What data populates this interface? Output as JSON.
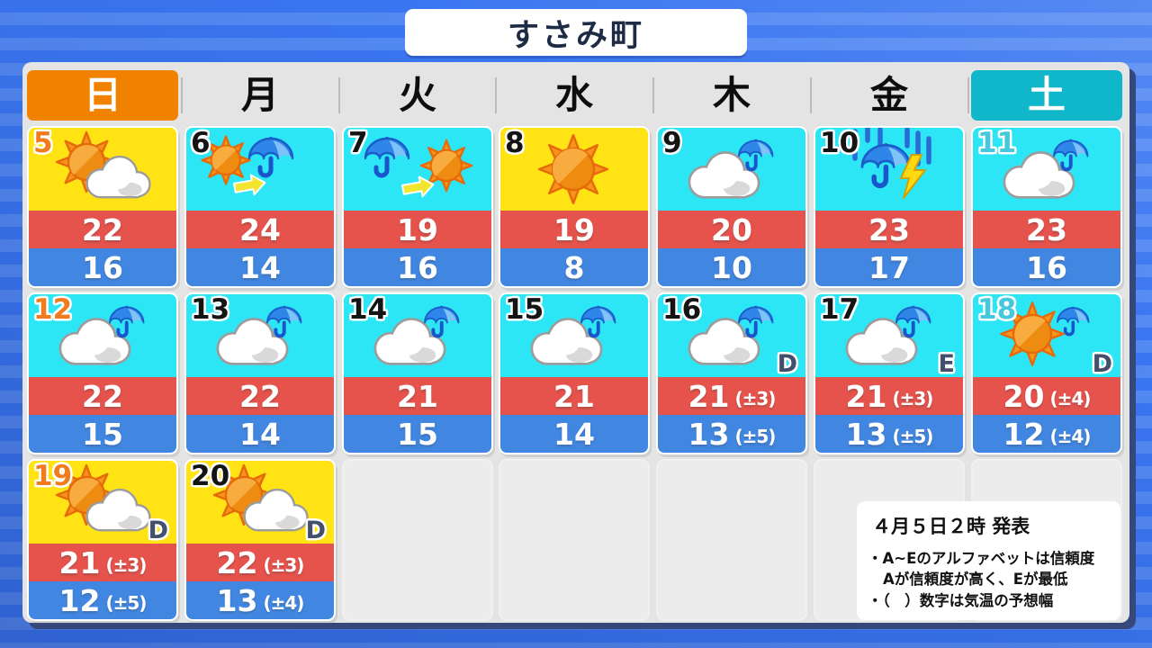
{
  "title": "すさみ町",
  "weekday_header": [
    "日",
    "月",
    "火",
    "水",
    "木",
    "金",
    "土"
  ],
  "legend": {
    "issued": "４月５日２時 発表",
    "bullet1": "・A~Eのアルファベットは信頼度",
    "bullet2": "Aが信頼度が高く、Eが最低",
    "bullet3": "・（　）数字は気温の予想幅"
  },
  "colors": {
    "sunday_header_bg": "#f08200",
    "saturday_header_bg": "#10b6c9",
    "sunny_cell_bg": "#ffe314",
    "cloudy_cell_bg": "#2ce6f6",
    "high_band_bg": "#e6534c",
    "low_band_bg": "#4187e2",
    "sunday_date": "#f07c1e",
    "saturday_date": "#46c8dc",
    "weekday_date": "#141414"
  },
  "days": [
    {
      "date": "5",
      "weekday": "sun",
      "sky": "sunny",
      "icon": "sun-cloud",
      "high": "22",
      "low": "16"
    },
    {
      "date": "6",
      "weekday": "mon",
      "sky": "cloudy",
      "icon": "sun-then-umbrella",
      "high": "24",
      "low": "14"
    },
    {
      "date": "7",
      "weekday": "tue",
      "sky": "cloudy",
      "icon": "umbrella-then-sun",
      "high": "19",
      "low": "16"
    },
    {
      "date": "8",
      "weekday": "wed",
      "sky": "sunny",
      "icon": "sun",
      "high": "19",
      "low": "8"
    },
    {
      "date": "9",
      "weekday": "thu",
      "sky": "cloudy",
      "icon": "cloud-umbrella",
      "high": "20",
      "low": "10"
    },
    {
      "date": "10",
      "weekday": "fri",
      "sky": "cloudy",
      "icon": "rain-thunder",
      "high": "23",
      "low": "17"
    },
    {
      "date": "11",
      "weekday": "sat",
      "sky": "cloudy",
      "icon": "cloud-umbrella",
      "high": "23",
      "low": "16"
    },
    {
      "date": "12",
      "weekday": "sun",
      "sky": "cloudy",
      "icon": "cloud-umbrella",
      "high": "22",
      "low": "15"
    },
    {
      "date": "13",
      "weekday": "mon",
      "sky": "cloudy",
      "icon": "cloud-umbrella",
      "high": "22",
      "low": "14"
    },
    {
      "date": "14",
      "weekday": "tue",
      "sky": "cloudy",
      "icon": "cloud-umbrella",
      "high": "21",
      "low": "15"
    },
    {
      "date": "15",
      "weekday": "wed",
      "sky": "cloudy",
      "icon": "cloud-umbrella",
      "high": "21",
      "low": "14"
    },
    {
      "date": "16",
      "weekday": "thu",
      "sky": "cloudy",
      "icon": "cloud-umbrella",
      "reliability": "D",
      "high": "21",
      "high_range": "(±3)",
      "low": "13",
      "low_range": "(±5)"
    },
    {
      "date": "17",
      "weekday": "fri",
      "sky": "cloudy",
      "icon": "cloud-umbrella",
      "reliability": "E",
      "high": "21",
      "high_range": "(±3)",
      "low": "13",
      "low_range": "(±5)"
    },
    {
      "date": "18",
      "weekday": "sat",
      "sky": "cloudy",
      "icon": "sun-umbrella",
      "reliability": "D",
      "high": "20",
      "high_range": "(±4)",
      "low": "12",
      "low_range": "(±4)"
    },
    {
      "date": "19",
      "weekday": "sun",
      "sky": "sunny",
      "icon": "sun-cloud",
      "reliability": "D",
      "high": "21",
      "high_range": "(±3)",
      "low": "12",
      "low_range": "(±5)"
    },
    {
      "date": "20",
      "weekday": "mon",
      "sky": "sunny",
      "icon": "sun-cloud",
      "reliability": "D",
      "high": "22",
      "high_range": "(±3)",
      "low": "13",
      "low_range": "(±4)"
    }
  ]
}
